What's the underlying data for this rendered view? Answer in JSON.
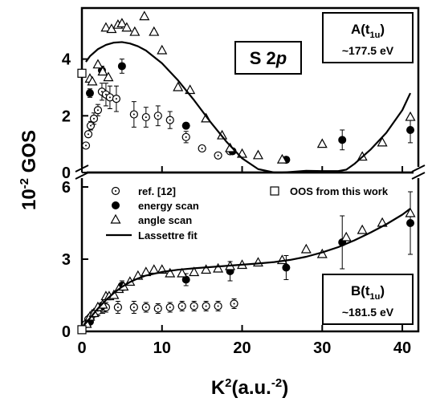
{
  "chart_data": [
    {
      "panel": "A",
      "type": "scatter",
      "xlim": [
        0,
        42
      ],
      "ylim": [
        0,
        5.8
      ],
      "yticks": [
        0,
        2,
        4
      ],
      "panel_label": "A(t1u)",
      "panel_label_main": "A(t",
      "panel_label_sub": "1u",
      "panel_label_close": ")",
      "panel_energy": "~177.5 eV",
      "annotation": "S 2p",
      "annotation_main": "S 2",
      "annotation_italic": "p",
      "series": [
        {
          "name": "ref. [12]",
          "marker": "dotted-circle",
          "x": [
            0.5,
            0.8,
            1.1,
            1.5,
            2.0,
            2.5,
            3.0,
            3.5,
            4.3,
            6.5,
            8.0,
            9.5,
            11.0,
            13.0,
            15.0,
            17.0,
            18.5
          ],
          "y": [
            0.95,
            1.35,
            1.65,
            1.9,
            2.2,
            2.85,
            2.75,
            2.65,
            2.6,
            2.05,
            1.95,
            2.0,
            1.85,
            1.25,
            0.85,
            0.6,
            0.75
          ],
          "err": [
            0.1,
            0.1,
            0.15,
            0.2,
            0.2,
            0.3,
            0.4,
            0.4,
            0.45,
            0.45,
            0.35,
            0.35,
            0.3,
            0.2,
            0.1,
            0.1,
            0.1
          ]
        },
        {
          "name": "energy scan",
          "marker": "filled-circle",
          "x": [
            1.0,
            2.5,
            5.0,
            13.0,
            18.8,
            25.5,
            32.5,
            41.0
          ],
          "y": [
            2.8,
            3.6,
            3.75,
            1.65,
            0.75,
            0.45,
            1.15,
            1.5
          ],
          "err": [
            0.15,
            0.15,
            0.25,
            0.1,
            0.1,
            0.1,
            0.35,
            0.45
          ]
        },
        {
          "name": "angle scan",
          "marker": "open-triangle",
          "x": [
            1.0,
            1.3,
            2.0,
            2.6,
            3.0,
            3.3,
            3.7,
            4.5,
            5.0,
            5.6,
            6.6,
            7.8,
            9.0,
            10.0,
            12.0,
            13.5,
            15.5,
            17.5,
            18.5,
            20.0,
            22.0,
            25.0,
            30.0,
            35.0,
            37.5,
            41.0
          ],
          "y": [
            3.3,
            3.2,
            3.8,
            3.55,
            5.1,
            3.35,
            5.05,
            5.2,
            5.25,
            5.1,
            4.95,
            5.5,
            4.95,
            4.3,
            3.0,
            2.9,
            1.9,
            1.3,
            0.85,
            0.65,
            0.6,
            0.45,
            1.0,
            0.55,
            1.05,
            1.95
          ]
        },
        {
          "name": "Lassettre fit",
          "marker": "line",
          "x": [
            0.5,
            1,
            2,
            3,
            4,
            5,
            6,
            7,
            8,
            10,
            12,
            14,
            16,
            18,
            20,
            22,
            24,
            25,
            26,
            28,
            30,
            32,
            33,
            34,
            36,
            38,
            40,
            41
          ],
          "y": [
            3.9,
            4.1,
            4.35,
            4.5,
            4.58,
            4.6,
            4.55,
            4.45,
            4.3,
            3.85,
            3.25,
            2.55,
            1.8,
            1.1,
            0.5,
            0.12,
            0.0,
            0.0,
            0.02,
            0.06,
            0.05,
            0.05,
            0.1,
            0.3,
            0.8,
            1.4,
            2.2,
            2.8
          ]
        },
        {
          "name": "OOS from this work",
          "marker": "open-square",
          "x": [
            0
          ],
          "y": [
            3.5
          ]
        }
      ]
    },
    {
      "panel": "B",
      "type": "scatter",
      "xlim": [
        0,
        42
      ],
      "ylim": [
        0,
        6.6
      ],
      "yticks": [
        0,
        3,
        6
      ],
      "panel_label": "B(t1u)",
      "panel_label_main": "B(t",
      "panel_label_sub": "1u",
      "panel_label_close": ")",
      "panel_energy": "~181.5 eV",
      "series": [
        {
          "name": "ref. [12]",
          "marker": "dotted-circle",
          "x": [
            0.5,
            0.8,
            1.1,
            1.5,
            2.0,
            2.6,
            3.0,
            4.5,
            6.5,
            8.0,
            9.5,
            11.0,
            12.5,
            14.0,
            15.5,
            17.0,
            19.0
          ],
          "y": [
            0.3,
            0.5,
            0.6,
            0.75,
            0.85,
            0.95,
            1.0,
            1.0,
            1.0,
            1.0,
            0.95,
            1.0,
            1.05,
            1.05,
            1.05,
            1.05,
            1.15
          ],
          "err": [
            0.1,
            0.1,
            0.1,
            0.15,
            0.2,
            0.2,
            0.2,
            0.25,
            0.25,
            0.2,
            0.2,
            0.2,
            0.2,
            0.2,
            0.2,
            0.2,
            0.2
          ]
        },
        {
          "name": "energy scan",
          "marker": "filled-circle",
          "x": [
            1.0,
            2.5,
            5.0,
            13.0,
            18.5,
            25.5,
            32.5,
            41.0
          ],
          "y": [
            0.4,
            1.05,
            1.9,
            2.15,
            2.5,
            2.65,
            3.7,
            4.5
          ],
          "err": [
            0.1,
            0.15,
            0.2,
            0.25,
            0.4,
            0.5,
            1.1,
            1.3
          ]
        },
        {
          "name": "angle scan",
          "marker": "open-triangle",
          "x": [
            0.6,
            1.0,
            1.5,
            2.0,
            2.6,
            3.0,
            3.4,
            4.0,
            4.6,
            5.2,
            6.0,
            7.0,
            8.0,
            9.0,
            10.0,
            11.0,
            12.5,
            14.0,
            15.5,
            17.0,
            18.5,
            20.0,
            22.0,
            25.0,
            28.0,
            30.0,
            33.0,
            35.0,
            37.5,
            41.0
          ],
          "y": [
            0.3,
            0.6,
            0.75,
            1.0,
            1.1,
            1.45,
            1.45,
            1.5,
            1.75,
            1.85,
            2.05,
            2.3,
            2.45,
            2.55,
            2.55,
            2.4,
            2.4,
            2.45,
            2.55,
            2.6,
            2.7,
            2.75,
            2.85,
            2.95,
            3.4,
            3.2,
            3.9,
            4.2,
            4.5,
            4.9
          ]
        },
        {
          "name": "Lassettre fit",
          "marker": "line",
          "x": [
            0,
            1,
            2,
            3,
            4,
            5,
            6,
            7,
            8,
            10,
            12,
            14,
            16,
            18,
            20,
            22,
            24,
            26,
            28,
            30,
            32,
            34,
            36,
            38,
            40,
            41
          ],
          "y": [
            0.15,
            0.55,
            0.95,
            1.3,
            1.6,
            1.85,
            2.05,
            2.2,
            2.32,
            2.47,
            2.56,
            2.62,
            2.67,
            2.72,
            2.77,
            2.82,
            2.88,
            2.97,
            3.1,
            3.28,
            3.5,
            3.78,
            4.1,
            4.45,
            4.85,
            5.1
          ]
        },
        {
          "name": "OOS from this work",
          "marker": "open-square",
          "x": [
            0
          ],
          "y": [
            0.07
          ]
        }
      ]
    }
  ],
  "axes": {
    "ylabel_main": "GOS",
    "ylabel_prefix": "10",
    "ylabel_exp": "-2",
    "xlabel_main": "K",
    "xlabel_exp": "2",
    "xlabel_unit_open": "(a.u.",
    "xlabel_unit_exp": "-2",
    "xlabel_unit_close": ")",
    "xticks": [
      0,
      10,
      20,
      30,
      40
    ]
  },
  "legend": {
    "ref": "ref. [12]",
    "energy": "energy scan",
    "angle": "angle scan",
    "fit": "Lassettre fit",
    "oos": "OOS from this work"
  }
}
